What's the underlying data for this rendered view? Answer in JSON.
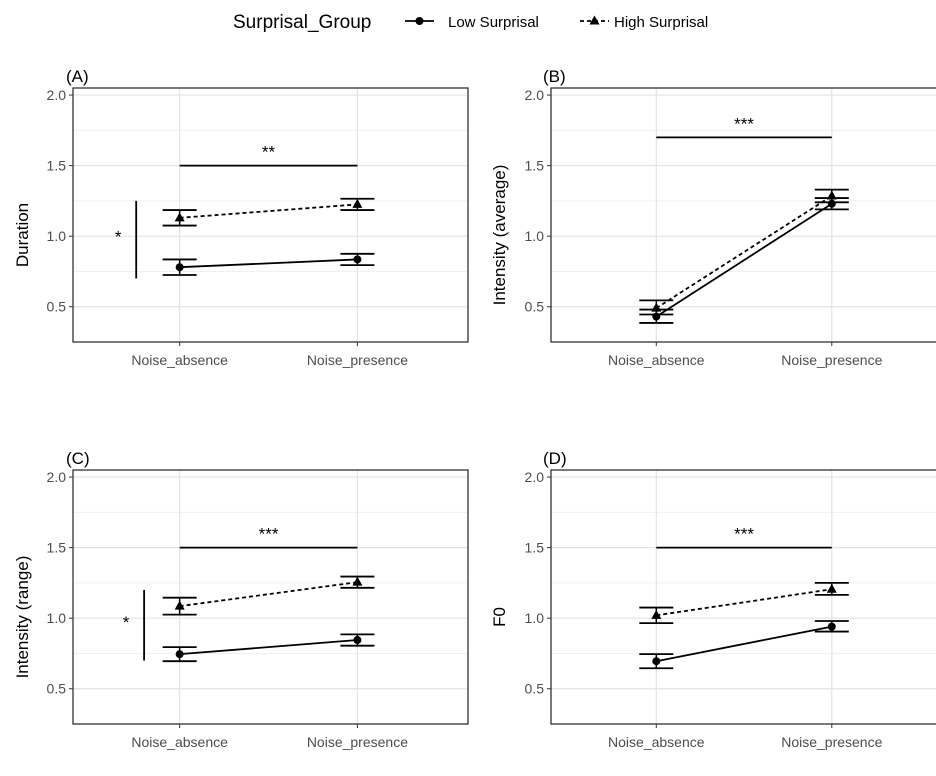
{
  "legend": {
    "title": "Surprisal_Group",
    "entries": [
      {
        "label": "Low Surprisal",
        "marker": "circle",
        "linetype": "solid"
      },
      {
        "label": "High Surprisal",
        "marker": "triangle",
        "linetype": "dashed"
      }
    ],
    "placement": "top"
  },
  "chart_data": [
    {
      "type": "line",
      "panel": "(A)",
      "title": "",
      "ylabel": "Duration",
      "xlabel": "",
      "categories": [
        "Noise_absence",
        "Noise_presence"
      ],
      "ylim": [
        0.25,
        2.05
      ],
      "yticks": [
        "0.5",
        "1.0",
        "1.5",
        "2.0"
      ],
      "grid": true,
      "series": [
        {
          "name": "Low Surprisal",
          "values": [
            0.78,
            0.835
          ],
          "err_low": [
            0.725,
            0.795
          ],
          "err_high": [
            0.835,
            0.875
          ]
        },
        {
          "name": "High Surprisal",
          "values": [
            1.13,
            1.225
          ],
          "err_low": [
            1.075,
            1.185
          ],
          "err_high": [
            1.185,
            1.265
          ]
        }
      ],
      "annotations": {
        "horizontal": {
          "label": "**",
          "y": 1.5
        },
        "vertical": {
          "label": "*",
          "y_from": 0.7,
          "y_to": 1.25
        }
      }
    },
    {
      "type": "line",
      "panel": "(B)",
      "title": "",
      "ylabel": "Intensity (average)",
      "xlabel": "",
      "categories": [
        "Noise_absence",
        "Noise_presence"
      ],
      "ylim": [
        0.25,
        2.05
      ],
      "yticks": [
        "0.5",
        "1.0",
        "1.5",
        "2.0"
      ],
      "grid": true,
      "series": [
        {
          "name": "Low Surprisal",
          "values": [
            0.43,
            1.23
          ],
          "err_low": [
            0.385,
            1.19
          ],
          "err_high": [
            0.48,
            1.27
          ]
        },
        {
          "name": "High Surprisal",
          "values": [
            0.49,
            1.285
          ],
          "err_low": [
            0.445,
            1.24
          ],
          "err_high": [
            0.545,
            1.33
          ]
        }
      ],
      "annotations": {
        "horizontal": {
          "label": "***",
          "y": 1.7
        }
      }
    },
    {
      "type": "line",
      "panel": "(C)",
      "title": "",
      "ylabel": "Intensity (range)",
      "xlabel": "",
      "categories": [
        "Noise_absence",
        "Noise_presence"
      ],
      "ylim": [
        0.25,
        2.05
      ],
      "yticks": [
        "0.5",
        "1.0",
        "1.5",
        "2.0"
      ],
      "grid": true,
      "series": [
        {
          "name": "Low Surprisal",
          "values": [
            0.745,
            0.845
          ],
          "err_low": [
            0.695,
            0.805
          ],
          "err_high": [
            0.795,
            0.885
          ]
        },
        {
          "name": "High Surprisal",
          "values": [
            1.085,
            1.255
          ],
          "err_low": [
            1.025,
            1.215
          ],
          "err_high": [
            1.145,
            1.295
          ]
        }
      ],
      "annotations": {
        "horizontal": {
          "label": "***",
          "y": 1.5
        },
        "vertical": {
          "label": "*",
          "y_from": 0.7,
          "y_to": 1.2
        }
      }
    },
    {
      "type": "line",
      "panel": "(D)",
      "title": "",
      "ylabel": "F0",
      "xlabel": "",
      "categories": [
        "Noise_absence",
        "Noise_presence"
      ],
      "ylim": [
        0.25,
        2.05
      ],
      "yticks": [
        "0.5",
        "1.0",
        "1.5",
        "2.0"
      ],
      "grid": true,
      "series": [
        {
          "name": "Low Surprisal",
          "values": [
            0.695,
            0.94
          ],
          "err_low": [
            0.645,
            0.905
          ],
          "err_high": [
            0.745,
            0.98
          ]
        },
        {
          "name": "High Surprisal",
          "values": [
            1.02,
            1.205
          ],
          "err_low": [
            0.965,
            1.165
          ],
          "err_high": [
            1.075,
            1.25
          ]
        }
      ],
      "annotations": {
        "horizontal": {
          "label": "***",
          "y": 1.5
        }
      }
    }
  ]
}
